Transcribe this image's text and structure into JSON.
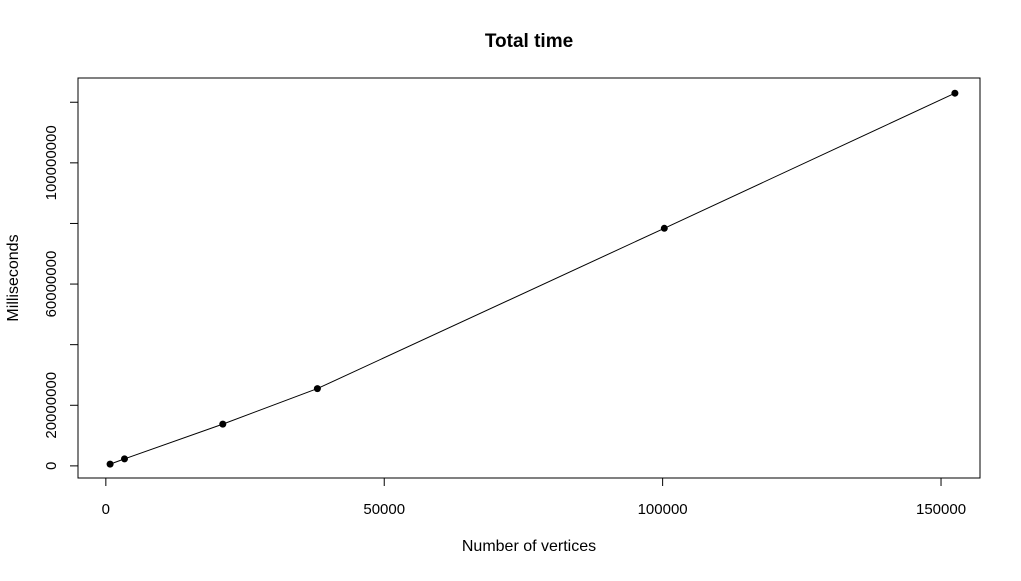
{
  "chart_data": {
    "type": "line",
    "title": "Total time",
    "xlabel": "Number of vertices",
    "ylabel": "Milliseconds",
    "xlim": [
      -5000,
      157000
    ],
    "ylim": [
      -4000000,
      128000000
    ],
    "x_ticks": [
      0,
      50000,
      100000,
      150000
    ],
    "x_tick_labels": [
      "0",
      "50000",
      "100000",
      "150000"
    ],
    "y_ticks": [
      0,
      20000000,
      40000000,
      60000000,
      80000000,
      100000000,
      120000000
    ],
    "y_tick_labels": [
      "0",
      "20000000",
      "",
      "60000000",
      "",
      "100000000",
      ""
    ],
    "grid": false,
    "legend": "none",
    "series": [
      {
        "x": [
          761,
          3350,
          21000,
          38000,
          100300,
          152500
        ],
        "y": [
          600000,
          2300000,
          13800000,
          25500000,
          78400000,
          123000000
        ]
      }
    ],
    "colors": {
      "line": "#000000",
      "point": "#000000",
      "frame": "#000000",
      "background": "#ffffff"
    }
  }
}
